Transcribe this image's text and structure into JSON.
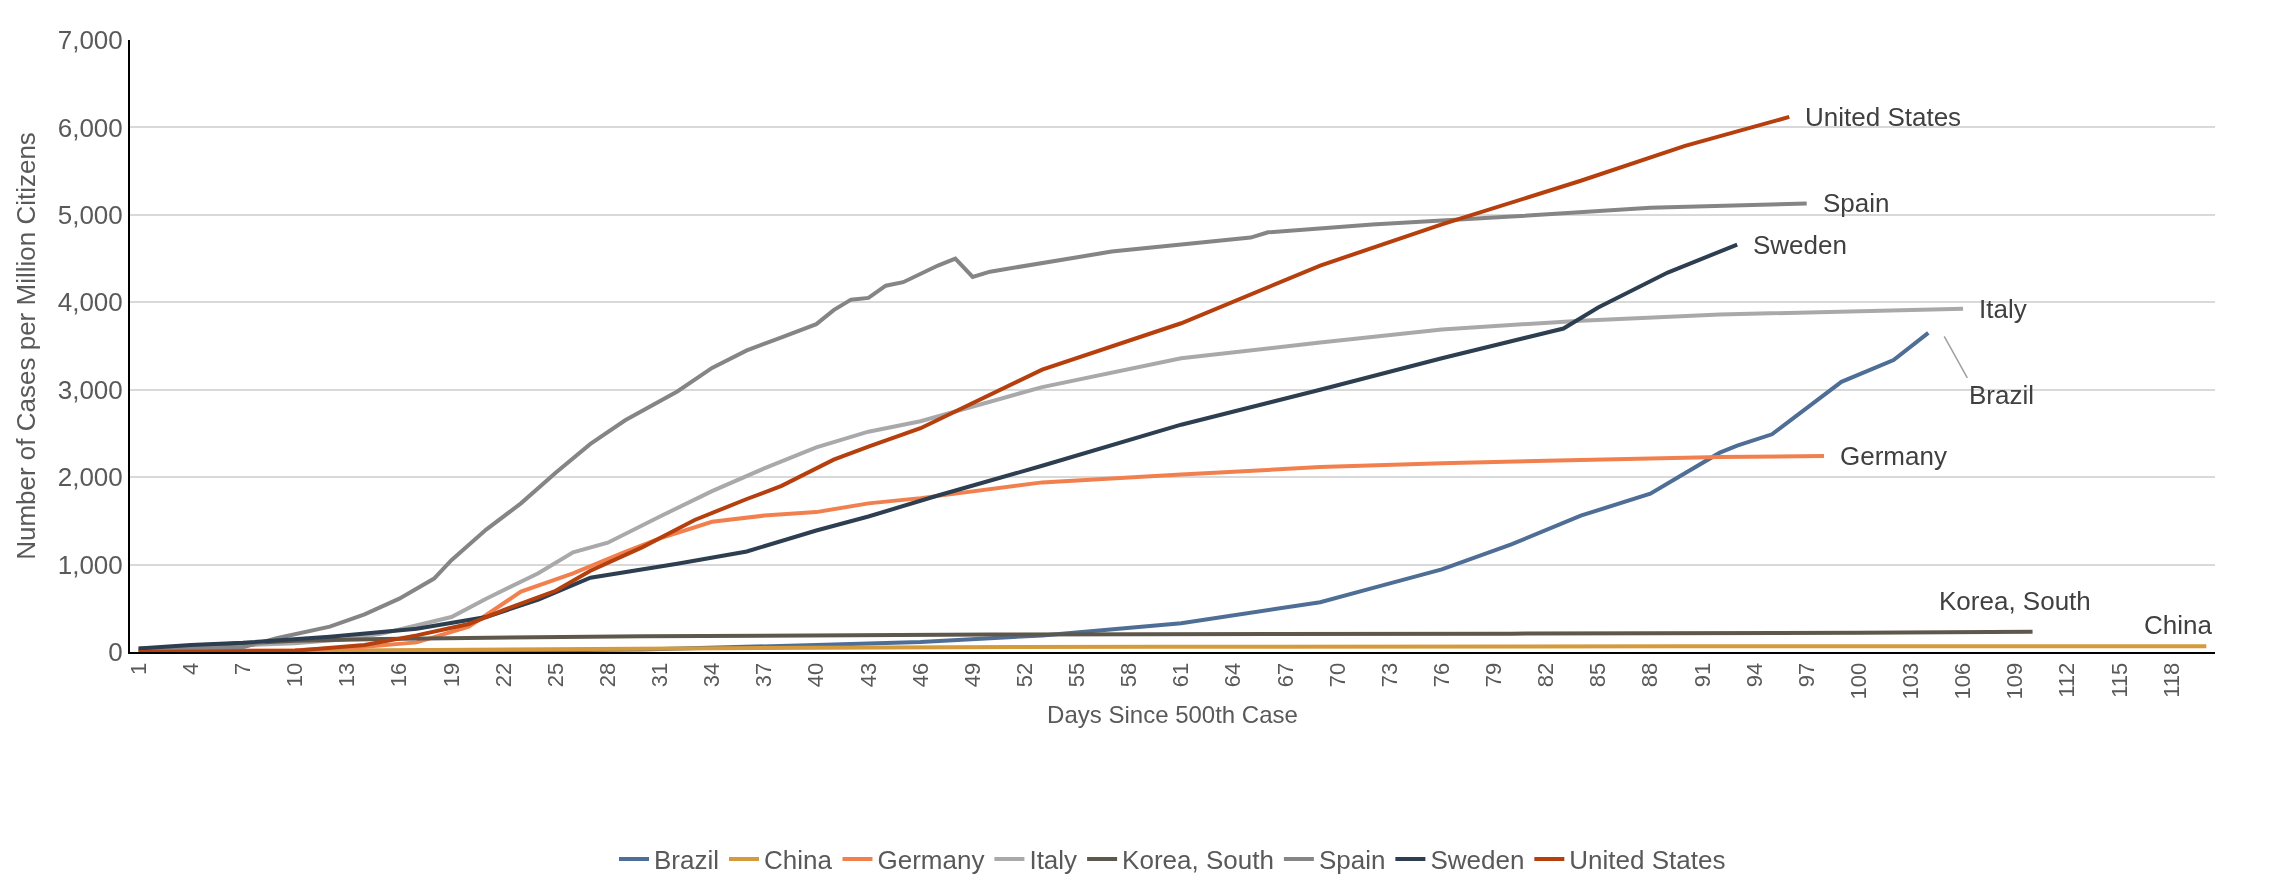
{
  "chart_data": {
    "type": "line",
    "xlabel": "Days Since 500th Case",
    "ylabel": "Number of Cases per Million Citizens",
    "xlim": [
      0.5,
      120.5
    ],
    "xticks": [
      1,
      4,
      7,
      10,
      13,
      16,
      19,
      22,
      25,
      28,
      31,
      34,
      37,
      40,
      43,
      46,
      49,
      52,
      55,
      58,
      61,
      64,
      67,
      70,
      73,
      76,
      79,
      82,
      85,
      88,
      91,
      94,
      97,
      100,
      103,
      106,
      109,
      112,
      115,
      118
    ],
    "ylim": [
      0,
      7000
    ],
    "yticks": [
      {
        "value": 0,
        "label": "0"
      },
      {
        "value": 1000,
        "label": "1,000"
      },
      {
        "value": 2000,
        "label": "2,000"
      },
      {
        "value": 3000,
        "label": "3,000"
      },
      {
        "value": 4000,
        "label": "4,000"
      },
      {
        "value": 5000,
        "label": "5,000"
      },
      {
        "value": 6000,
        "label": "6,000"
      },
      {
        "value": 7000,
        "label": "7,000"
      }
    ],
    "grid": "y",
    "legend": "bottom",
    "line_style": "solid",
    "marker": "none",
    "series": [
      {
        "name": "Brazil",
        "color": "#4e6e96",
        "x": [
          1,
          20,
          30,
          40,
          46,
          53,
          61,
          69,
          72,
          76,
          80,
          84,
          88,
          92,
          93,
          95,
          99,
          102,
          104
        ],
        "values": [
          0,
          10,
          30,
          80,
          113,
          190,
          330,
          570,
          730,
          945,
          1230,
          1560,
          1810,
          2280,
          2360,
          2490,
          3090,
          3340,
          3650
        ]
      },
      {
        "name": "China",
        "color": "#d49a3c",
        "x": [
          1,
          20,
          40,
          60,
          90,
          120
        ],
        "values": [
          5,
          25,
          50,
          60,
          65,
          65
        ]
      },
      {
        "name": "Germany",
        "color": "#f2804f",
        "x": [
          1,
          10,
          14,
          17,
          20,
          23,
          26,
          29,
          31,
          34,
          37,
          40,
          43,
          46,
          53,
          61,
          69,
          76,
          84,
          92,
          98
        ],
        "values": [
          5,
          20,
          60,
          110,
          290,
          690,
          900,
          1145,
          1300,
          1490,
          1560,
          1600,
          1700,
          1760,
          1940,
          2030,
          2115,
          2160,
          2195,
          2230,
          2242
        ]
      },
      {
        "name": "Italy",
        "color": "#a9a9ab",
        "x": [
          1,
          10,
          13,
          15,
          19,
          21,
          24,
          26,
          28,
          31,
          34,
          37,
          40,
          43,
          46,
          53,
          61,
          69,
          76,
          84,
          92,
          106
        ],
        "values": [
          30,
          100,
          150,
          210,
          400,
          610,
          900,
          1140,
          1250,
          1550,
          1840,
          2100,
          2340,
          2520,
          2640,
          3030,
          3360,
          3540,
          3690,
          3790,
          3860,
          3925
        ]
      },
      {
        "name": "Korea, South",
        "color": "#5e584c",
        "x": [
          1,
          5,
          10,
          15,
          30,
          50,
          80,
          100,
          110
        ],
        "values": [
          30,
          80,
          130,
          150,
          180,
          200,
          210,
          220,
          233
        ]
      },
      {
        "name": "Spain",
        "color": "#858585",
        "x": [
          1,
          7,
          9,
          12,
          14,
          16,
          18,
          19,
          21,
          23,
          25,
          27,
          29,
          32,
          34,
          36,
          38,
          40,
          41,
          42,
          43,
          44,
          45,
          47,
          48,
          49,
          50,
          57,
          65,
          66,
          72,
          80,
          88,
          97
        ],
        "values": [
          40,
          55,
          160,
          290,
          430,
          610,
          840,
          1050,
          1400,
          1700,
          2050,
          2380,
          2650,
          2980,
          3250,
          3450,
          3600,
          3750,
          3910,
          4030,
          4050,
          4190,
          4230,
          4420,
          4500,
          4290,
          4350,
          4580,
          4740,
          4800,
          4890,
          4980,
          5080,
          5130
        ]
      },
      {
        "name": "Sweden",
        "color": "#2c3e50",
        "x": [
          1,
          4,
          7,
          12,
          17,
          21,
          24,
          27,
          32,
          36,
          40,
          43,
          47,
          53,
          61,
          69,
          76,
          83,
          85,
          89,
          93
        ],
        "values": [
          40,
          80,
          105,
          175,
          265,
          400,
          600,
          850,
          1010,
          1150,
          1390,
          1550,
          1790,
          2130,
          2600,
          3000,
          3360,
          3700,
          3940,
          4340,
          4660
        ]
      },
      {
        "name": "United States",
        "color": "#b5400e",
        "x": [
          1,
          10,
          14,
          17,
          20,
          22,
          25,
          27,
          30,
          33,
          36,
          38,
          41,
          43,
          46,
          53,
          61,
          69,
          76,
          84,
          90,
          96
        ],
        "values": [
          0,
          15,
          80,
          190,
          320,
          480,
          700,
          930,
          1200,
          1510,
          1750,
          1900,
          2200,
          2350,
          2560,
          3230,
          3760,
          4420,
          4890,
          5390,
          5790,
          6120
        ]
      }
    ]
  }
}
